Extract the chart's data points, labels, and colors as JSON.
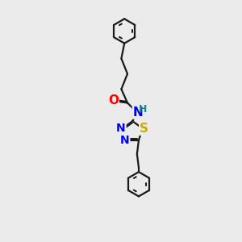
{
  "bg_color": "#ebebeb",
  "bond_color": "#1a1a1a",
  "bond_width": 1.6,
  "atom_colors": {
    "O": "#ff0000",
    "N": "#0000ff",
    "S": "#ccaa00",
    "NH": "#1a8a8a"
  },
  "font_size": 10,
  "figsize": [
    3.0,
    3.0
  ],
  "dpi": 100,
  "xlim": [
    3.5,
    8.5
  ],
  "ylim": [
    0.5,
    14.5
  ]
}
